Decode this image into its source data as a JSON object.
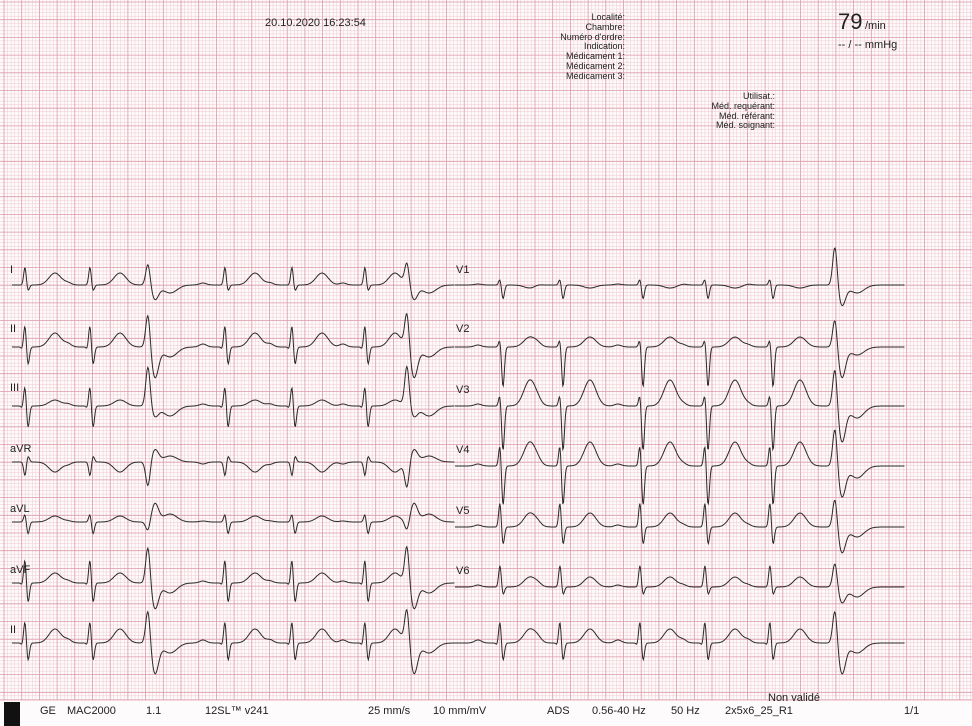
{
  "header": {
    "datetime": "20.10.2020  16:23:54",
    "patient_fields": [
      "Localité:",
      "Chambre:",
      "Numéro d'ordre:",
      "Indication:",
      "Médicament 1:",
      "Médicament 2:",
      "Médicament 3:"
    ],
    "staff_fields": [
      "Utilisat.:",
      "Méd. requérant:",
      "Méd. référant:",
      "Méd. soignant:"
    ],
    "heart_rate": "79",
    "heart_rate_unit": "/min",
    "blood_pressure": "-- / -- mmHg"
  },
  "leads": {
    "left": [
      "I",
      "II",
      "III",
      "aVR",
      "aVL",
      "aVF"
    ],
    "rhythm": "II",
    "right": [
      "V1",
      "V2",
      "V3",
      "V4",
      "V5",
      "V6"
    ]
  },
  "footer": {
    "manufacturer": "GE",
    "device": "MAC2000",
    "device_version": "1.1",
    "software": "12SL™ v241",
    "speed": "25 mm/s",
    "gain": "10 mm/mV",
    "ads": "ADS",
    "filter": "0.56-40 Hz",
    "mains": "50 Hz",
    "format": "2x5x6_25_R1",
    "status": "Non validé",
    "page": "1/1"
  },
  "colors": {
    "grid_minor": "#f0c8d0",
    "grid_major": "#dc9aa8",
    "trace": "#2a2a2a"
  }
}
